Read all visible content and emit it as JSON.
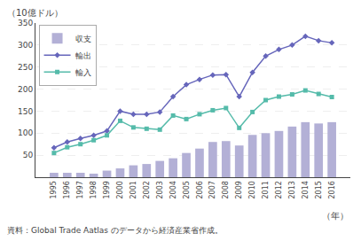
{
  "chart_data": {
    "type": "bar",
    "categories": [
      "1995",
      "1996",
      "1997",
      "1998",
      "1999",
      "2000",
      "2001",
      "2002",
      "2003",
      "2004",
      "2005",
      "2006",
      "2007",
      "2008",
      "2009",
      "2010",
      "2011",
      "2012",
      "2013",
      "2014",
      "2015",
      "2016"
    ],
    "series": [
      {
        "name": "収支",
        "type": "bar",
        "color": "#b3b0d6",
        "values": [
          10,
          10,
          10,
          8,
          15,
          20,
          27,
          30,
          37,
          43,
          55,
          65,
          80,
          82,
          72,
          96,
          100,
          105,
          115,
          125,
          122,
          125
        ]
      },
      {
        "name": "輸出",
        "type": "line",
        "marker": "diamond",
        "color": "#6666bb",
        "values": [
          67,
          80,
          88,
          95,
          105,
          150,
          143,
          143,
          148,
          183,
          210,
          222,
          232,
          233,
          183,
          238,
          275,
          290,
          300,
          320,
          310,
          305
        ]
      },
      {
        "name": "輸入",
        "type": "line",
        "marker": "square",
        "color": "#55bbaa",
        "values": [
          55,
          68,
          75,
          84,
          95,
          128,
          113,
          110,
          108,
          140,
          132,
          143,
          152,
          157,
          112,
          148,
          175,
          183,
          188,
          197,
          189,
          182
        ]
      }
    ],
    "ylim": [
      0,
      350
    ],
    "yticks": [
      50,
      100,
      150,
      200,
      250,
      300,
      350
    ],
    "ylabel": "（10億ドル）",
    "xlabel": "（年）",
    "annotations": [
      "資料：Global Trade Aatlas のデータから経済産業省作成。"
    ],
    "grid": true,
    "legend": "upper left"
  }
}
